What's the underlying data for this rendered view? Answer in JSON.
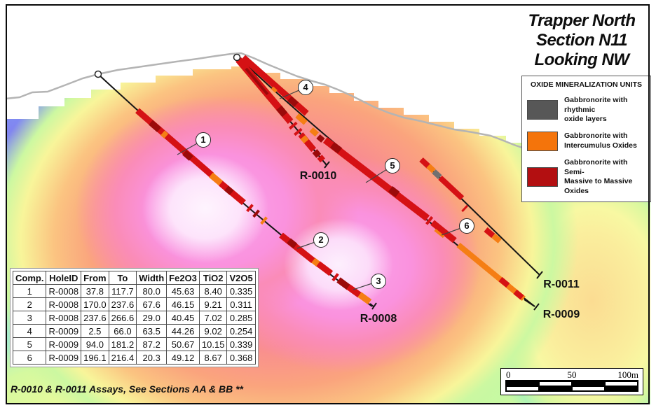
{
  "title": {
    "lines": [
      "Trapper North",
      "Section N11",
      "Looking NW"
    ]
  },
  "legend": {
    "title": "OXIDE MINERALIZATION UNITS",
    "items": [
      {
        "color": "#575757",
        "line1": "Gabbronorite with rhythmic",
        "line2": "oxide layers"
      },
      {
        "color": "#F4740B",
        "line1": "Gabbronorite with",
        "line2": "Intercumulus Oxides"
      },
      {
        "color": "#B30F11",
        "line1": "Gabbronorite with Semi-",
        "line2": "Massive to Massive Oxides"
      }
    ]
  },
  "assay_table": {
    "headers": [
      "Comp.",
      "HoleID",
      "From",
      "To",
      "Width",
      "Fe2O3",
      "TiO2",
      "V2O5"
    ],
    "rows": [
      [
        "1",
        "R-0008",
        "37.8",
        "117.7",
        "80.0",
        "45.63",
        "8.40",
        "0.335"
      ],
      [
        "2",
        "R-0008",
        "170.0",
        "237.6",
        "67.6",
        "46.15",
        "9.21",
        "0.311"
      ],
      [
        "3",
        "R-0008",
        "237.6",
        "266.6",
        "29.0",
        "40.45",
        "7.02",
        "0.285"
      ],
      [
        "4",
        "R-0009",
        "2.5",
        "66.0",
        "63.5",
        "44.26",
        "9.02",
        "0.254"
      ],
      [
        "5",
        "R-0009",
        "94.0",
        "181.2",
        "87.2",
        "50.67",
        "10.15",
        "0.339"
      ],
      [
        "6",
        "R-0009",
        "196.1",
        "216.4",
        "20.3",
        "49.12",
        "8.67",
        "0.368"
      ]
    ],
    "footnote": "R-0010 & R-0011 Assays, See Sections AA & BB **"
  },
  "map": {
    "hole_labels": [
      {
        "text": "R-0010"
      },
      {
        "text": "R-0008"
      },
      {
        "text": "R-0011"
      },
      {
        "text": "R-0009"
      }
    ],
    "markers": [
      {
        "label": "1"
      },
      {
        "label": "2"
      },
      {
        "label": "3"
      },
      {
        "label": "4"
      },
      {
        "label": "5"
      },
      {
        "label": "6"
      }
    ]
  },
  "scalebar": {
    "labels": [
      "0",
      "50",
      "100m"
    ]
  },
  "colors": {
    "interval_red": "#D51114",
    "interval_dark_red": "#9B0A0A",
    "interval_orange": "#F57E14",
    "interval_gray": "#707070",
    "topo_line": "#B4B4B4"
  }
}
